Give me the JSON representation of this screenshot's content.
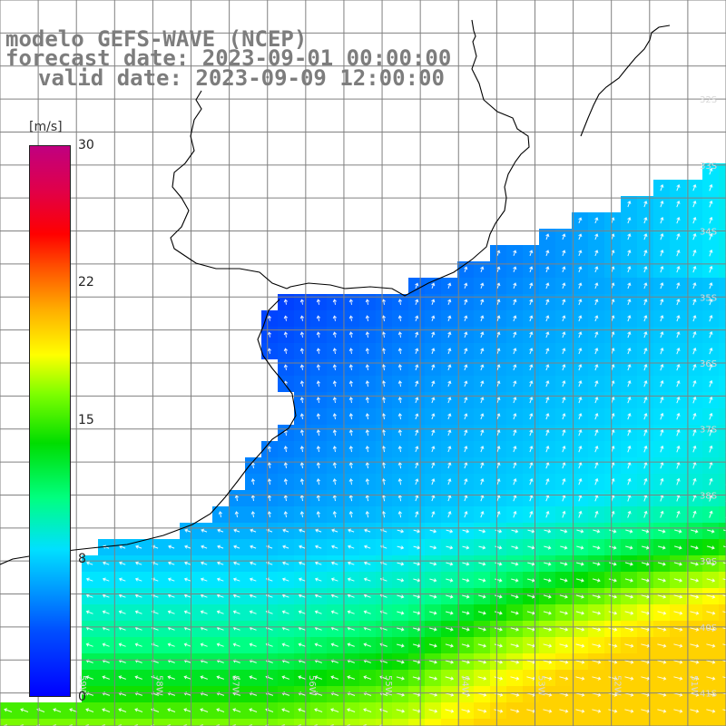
{
  "header": {
    "line1": "modelo GEFS-WAVE (NCEP)",
    "line2": "forecast date: 2023-09-01 00:00:00",
    "line3": "valid date: 2023-09-09 12:00:00"
  },
  "colorbar": {
    "unit": "[m/s]",
    "ticks": [
      "30",
      "22",
      "15",
      "8",
      "0"
    ],
    "tick_values": [
      30,
      22,
      15,
      8,
      0
    ],
    "range": [
      0,
      30
    ]
  },
  "map": {
    "lon_range": [
      -60,
      -50.5
    ],
    "lat_range": [
      -41.5,
      -30.5
    ],
    "lat_labels": [
      "32S",
      "33S",
      "34S",
      "35S",
      "36S",
      "37S",
      "38S",
      "39S",
      "40S",
      "41S"
    ],
    "lon_labels": [
      "59W",
      "58W",
      "57W",
      "56W",
      "55W",
      "54W",
      "53W",
      "52W",
      "51W"
    ],
    "field": "wind speed with direction arrows",
    "colors": {
      "land": "#ffffff",
      "coast": "#000000",
      "grid": "#808080",
      "text": "#7d7d7d"
    }
  }
}
